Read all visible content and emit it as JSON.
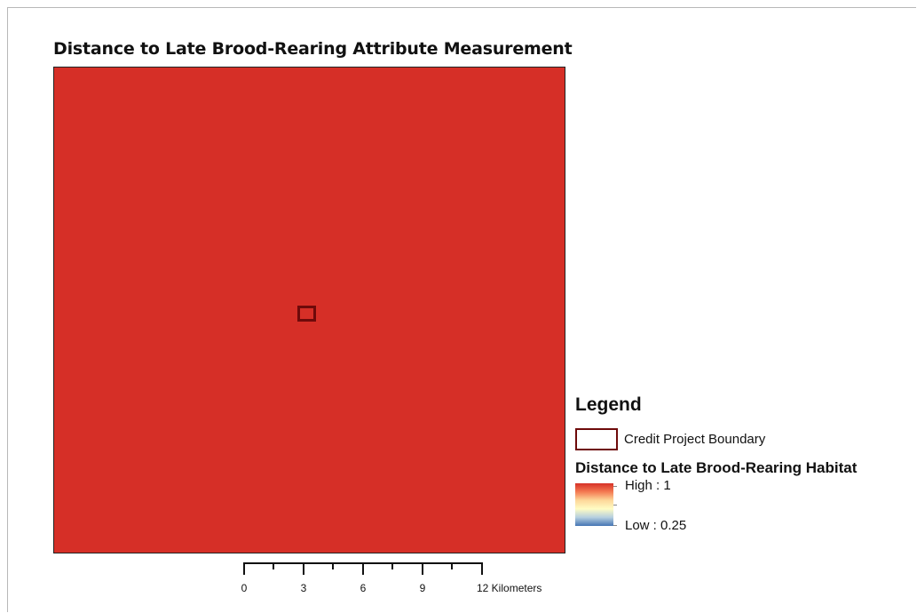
{
  "map": {
    "title": "Distance to Late Brood-Rearing Attribute Measurement",
    "fill_color": "#d62f27",
    "boundary_color": "#6e0a0a"
  },
  "legend": {
    "title": "Legend",
    "boundary_label": "Credit Project Boundary",
    "raster_title": "Distance to Late Brood-Rearing Habitat",
    "high_label": "High : 1",
    "low_label": "Low : 0.25",
    "gradient_colors": [
      "#d73027",
      "#f47a52",
      "#fdd89a",
      "#fffcc4",
      "#b5cfe0",
      "#4575b4"
    ]
  },
  "scalebar": {
    "labels": [
      "0",
      "3",
      "6",
      "9",
      "12 Kilometers"
    ]
  }
}
